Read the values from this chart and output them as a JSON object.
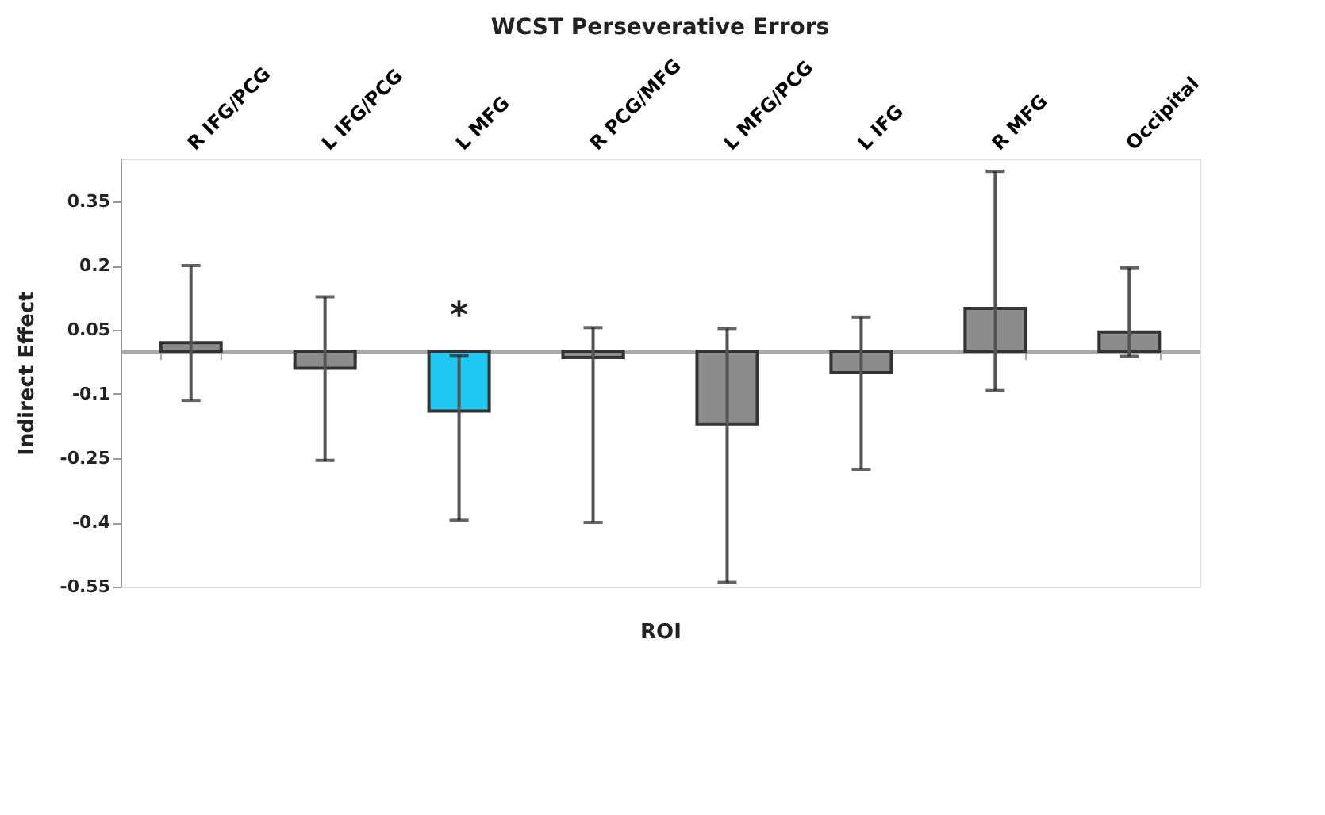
{
  "chart_data": {
    "type": "bar",
    "title": "WCST Perseverative Errors",
    "xlabel": "ROI",
    "ylabel": "Indirect Effect",
    "categories": [
      "R IFG/PCG",
      "L IFG/PCG",
      "L MFG",
      "R PCG/MFG",
      "L MFG/PCG",
      "L IFG",
      "R MFG",
      "Occipital"
    ],
    "values": [
      0.02,
      -0.04,
      -0.14,
      -0.015,
      -0.17,
      -0.05,
      0.1,
      0.045
    ],
    "colors": [
      "#8c8c8c",
      "#8c8c8c",
      "#1ec8f0",
      "#8c8c8c",
      "#8c8c8c",
      "#8c8c8c",
      "#8c8c8c",
      "#8c8c8c"
    ],
    "errors": [
      [
        -0.115,
        0.2
      ],
      [
        -0.255,
        0.127
      ],
      [
        -0.395,
        -0.01
      ],
      [
        -0.4,
        0.055
      ],
      [
        -0.54,
        0.053
      ],
      [
        -0.276,
        0.08
      ],
      [
        -0.092,
        0.42
      ],
      [
        -0.012,
        0.195
      ]
    ],
    "ylim": [
      -0.55,
      0.45
    ],
    "yticks": [
      -0.55,
      -0.4,
      -0.25,
      -0.1,
      0.05,
      0.2,
      0.35
    ],
    "annotations": [
      {
        "text": "*",
        "x": "L MFG",
        "y": -0.01
      }
    ],
    "grid": false
  }
}
